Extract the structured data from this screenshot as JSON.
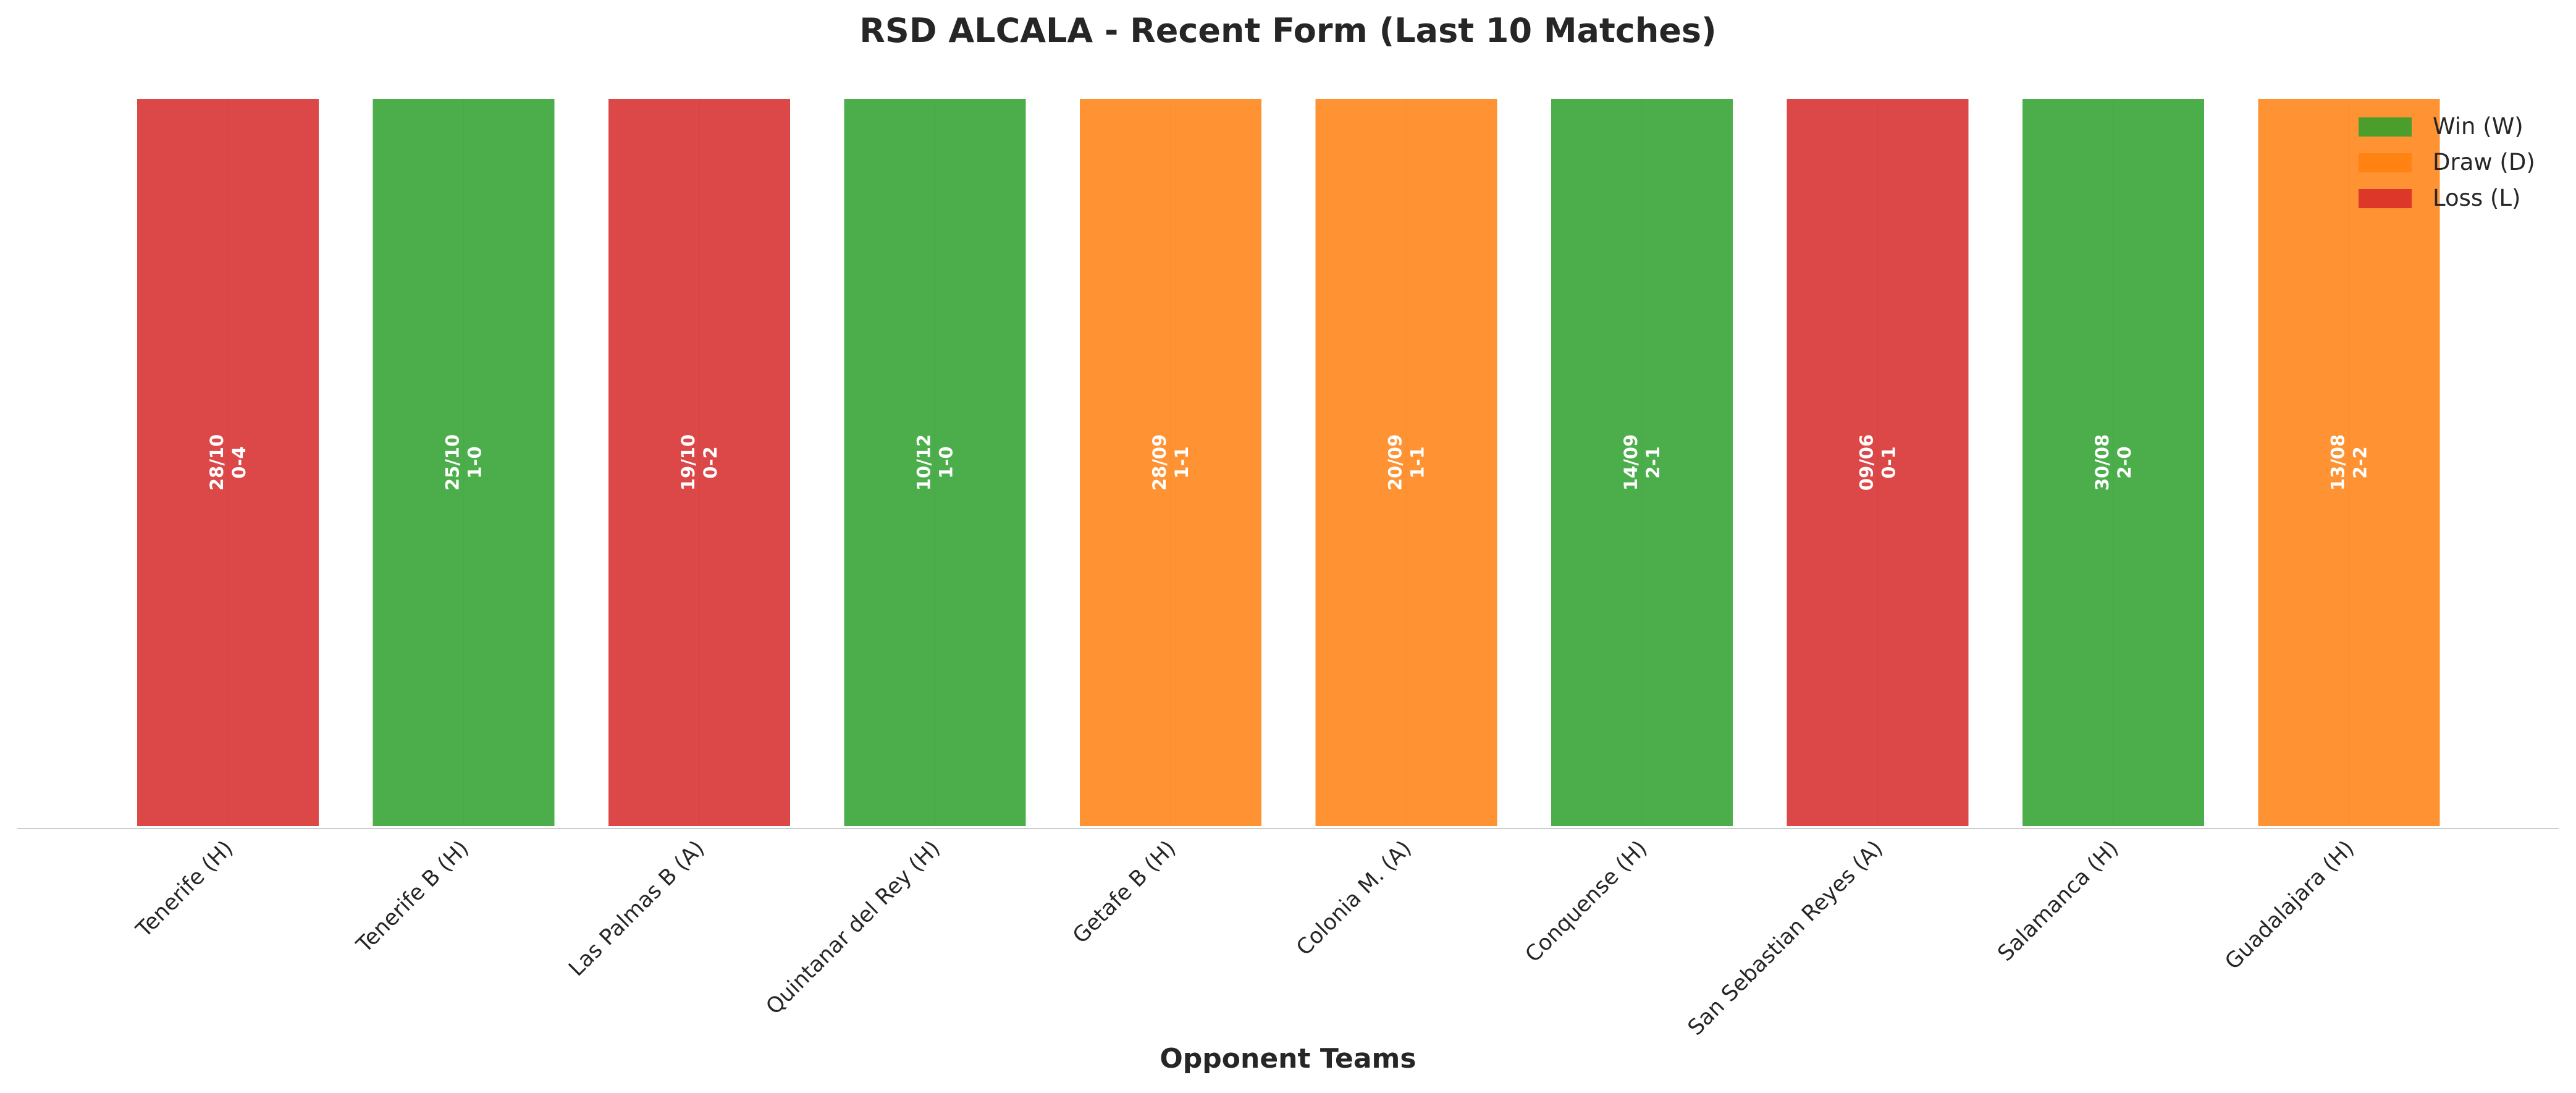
{
  "chart_data": {
    "type": "bar",
    "title": "RSD ALCALA - Recent Form (Last 10 Matches)",
    "xlabel": "Opponent Teams",
    "ylabel": "",
    "grid": true,
    "legend_position": "top-right",
    "categories": [
      "Tenerife (H)",
      "Tenerife B (H)",
      "Las Palmas B (A)",
      "Quintanar del Rey (H)",
      "Getafe B (H)",
      "Colonia M. (A)",
      "Conquense (H)",
      "San Sebastian Reyes (A)",
      "Salamanca (H)",
      "Guadalajara (H)"
    ],
    "values": [
      1,
      1,
      1,
      1,
      1,
      1,
      1,
      1,
      1,
      1
    ],
    "results": [
      "L",
      "W",
      "L",
      "W",
      "D",
      "D",
      "W",
      "L",
      "W",
      "D"
    ],
    "dates": [
      "28/10",
      "25/10",
      "19/10",
      "10/12",
      "28/09",
      "20/09",
      "14/09",
      "09/06",
      "30/08",
      "13/08"
    ],
    "scores": [
      "0-4",
      "1-0",
      "0-2",
      "1-0",
      "1-1",
      "1-1",
      "2-1",
      "0-1",
      "2-0",
      "2-2"
    ],
    "legend": [
      {
        "key": "W",
        "label": "Win (W)",
        "color": "#2ca02c"
      },
      {
        "key": "D",
        "label": "Draw (D)",
        "color": "#ff7f0e"
      },
      {
        "key": "L",
        "label": "Loss (L)",
        "color": "#d62728"
      }
    ],
    "colors": {
      "W": "#2ca02c",
      "D": "#ff7f0e",
      "L": "#d62728"
    }
  }
}
